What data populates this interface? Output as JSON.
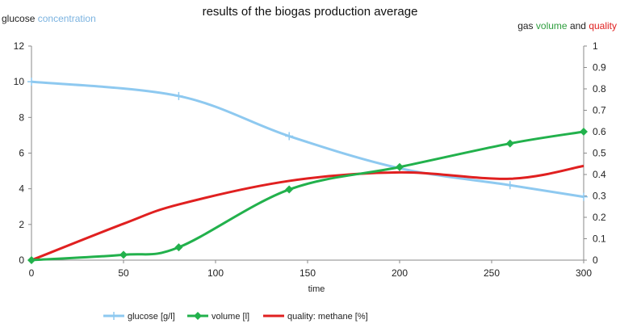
{
  "chart_data": {
    "type": "line",
    "title": "results of the biogas production average",
    "left_axis_title": {
      "part1": "glucose",
      "part2": "concentration"
    },
    "right_axis_title": {
      "part1": "gas",
      "part2": "volume",
      "part3": "and",
      "part4": "quality"
    },
    "xlabel": "time",
    "xlim": [
      0,
      300
    ],
    "x_ticks": [
      0,
      50,
      100,
      150,
      200,
      250,
      300
    ],
    "ylim_left": [
      0,
      12
    ],
    "y_ticks_left": [
      0,
      2,
      4,
      6,
      8,
      10,
      12
    ],
    "ylim_right": [
      0,
      1
    ],
    "y_ticks_right": [
      "0",
      "0.1",
      "0.2",
      "0.3",
      "0.4",
      "0.5",
      "0.6",
      "0.7",
      "0.8",
      "0.9",
      "1"
    ],
    "grid": false,
    "legend_position": "bottom",
    "series": [
      {
        "name": "glucose [g/l]",
        "axis": "left",
        "color": "#8EC9F0",
        "marker": "plus",
        "x": [
          0,
          80,
          140,
          200,
          260,
          300
        ],
        "y": [
          10,
          9.2,
          6.95,
          5.15,
          4.2,
          3.55
        ]
      },
      {
        "name": "volume [l]",
        "axis": "right",
        "color": "#22B14C",
        "marker": "diamond",
        "x": [
          0,
          50,
          80,
          140,
          200,
          260,
          300
        ],
        "y": [
          0,
          0.025,
          0.06,
          0.33,
          0.435,
          0.545,
          0.6
        ]
      },
      {
        "name": "quality: methane [%]",
        "axis": "right",
        "color": "#E02020",
        "marker": "none",
        "x": [
          0,
          50,
          80,
          140,
          200,
          260,
          300
        ],
        "y": [
          0,
          0.17,
          0.26,
          0.37,
          0.41,
          0.38,
          0.44
        ]
      }
    ]
  },
  "colors": {
    "title_highlight_blue": "#7BB3E0",
    "title_green": "#2E9E3E",
    "title_red": "#E02020"
  }
}
